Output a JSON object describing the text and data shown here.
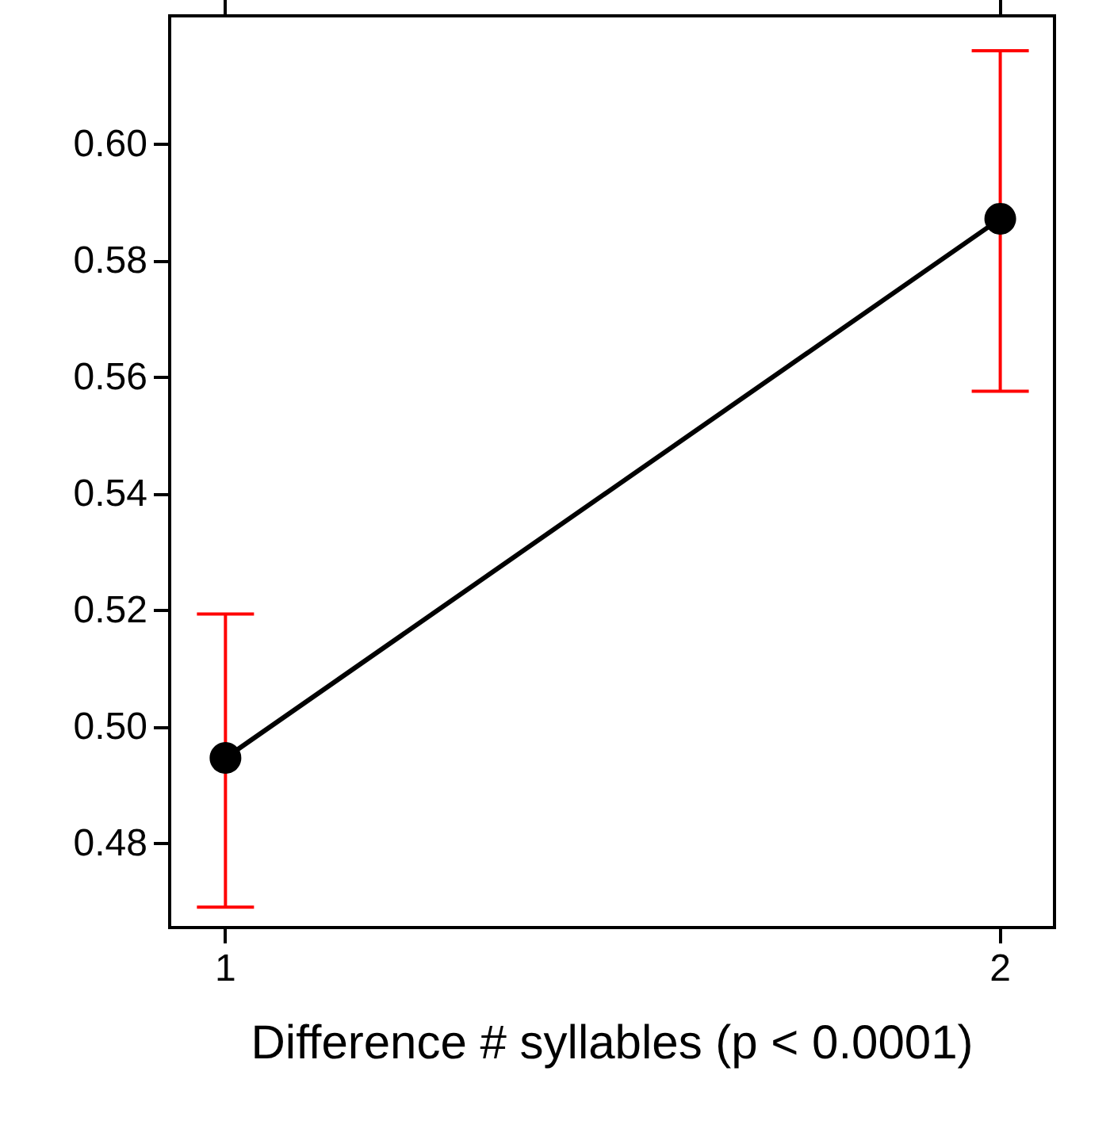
{
  "chart_data": {
    "type": "line",
    "xlabel": "Difference # syllables (p < 0.0001)",
    "x": [
      1,
      2
    ],
    "series": [
      {
        "color": "#000000",
        "values": [
          0.4947,
          0.5872
        ],
        "errors": [
          [
            0.4691,
            0.5194
          ],
          [
            0.5576,
            0.616
          ]
        ]
      }
    ],
    "xlim": [
      0.928,
      2.07
    ],
    "xticks": [
      1,
      2
    ],
    "ylim": [
      0.4656,
      0.622
    ],
    "yticks": [
      0.48,
      {
        "value": 0.5,
        "label": "0.50"
      },
      0.52,
      0.54,
      0.56,
      0.58,
      {
        "value": 0.6,
        "label": "0.60"
      }
    ],
    "grid": false,
    "marker": "circle",
    "line_style": "solid"
  }
}
